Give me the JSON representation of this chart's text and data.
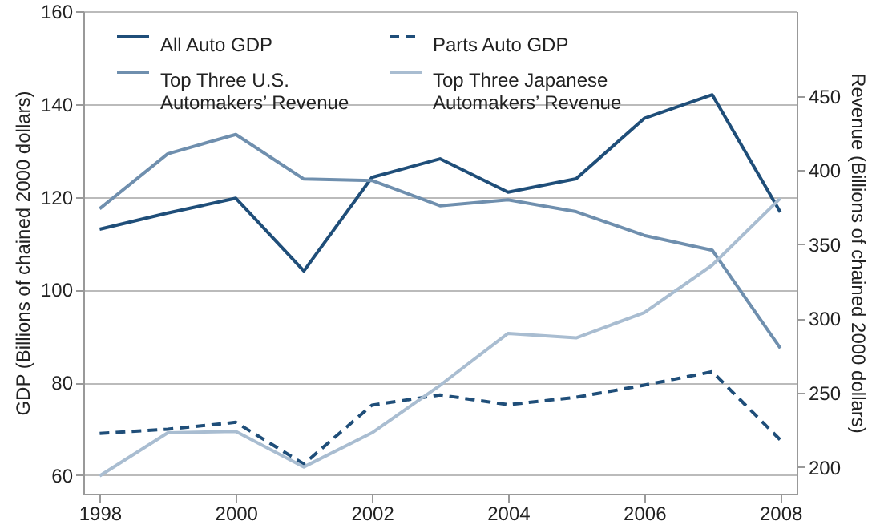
{
  "chart_data": {
    "type": "line",
    "ylabel": "GDP (Billions of chained 2000 dollars)",
    "y2label": "Revenue (Billions of chained 2000 dollars)",
    "x": [
      1998,
      1999,
      2000,
      2001,
      2002,
      2003,
      2004,
      2005,
      2006,
      2007,
      2008
    ],
    "xlim": [
      1997.76,
      2008.24
    ],
    "xticks": [
      1998,
      2000,
      2002,
      2004,
      2006,
      2008
    ],
    "ylim": [
      56,
      160
    ],
    "yticks": [
      60,
      80,
      100,
      120,
      140,
      160
    ],
    "y2lim": [
      182,
      507
    ],
    "y2ticks": [
      200,
      250,
      300,
      350,
      400,
      450
    ],
    "grid": "y",
    "legend": "top left",
    "marker": "none",
    "series": [
      {
        "name": "All Auto GDP",
        "color": "#1f4e79",
        "line_style": "solid",
        "values": [
          113,
          116.5,
          119.7,
          104,
          124.2,
          128.2,
          121,
          123.9,
          136.9,
          142,
          116.7
        ]
      },
      {
        "name": "Parts Auto GDP",
        "color": "#1f4e79",
        "line_style": "dashed",
        "values": [
          69,
          69.9,
          71.4,
          62.4,
          75.1,
          77.3,
          75.2,
          76.8,
          79.4,
          82.3,
          67.6
        ]
      },
      {
        "name": "Top Three U.S. Automakers’ Revenue",
        "color": "#6f8fae",
        "line_style": "solid",
        "axis": "y2",
        "values": [
          374,
          411,
          424,
          394,
          393,
          376,
          380,
          372,
          356,
          346,
          280
        ]
      },
      {
        "name": "Top Three Japanese Automakers’ Revenue",
        "color": "#a9bdd1",
        "line_style": "solid",
        "axis": "y2",
        "values": [
          194,
          223,
          224,
          200,
          223,
          255,
          290,
          287,
          304,
          336,
          381
        ]
      }
    ]
  }
}
